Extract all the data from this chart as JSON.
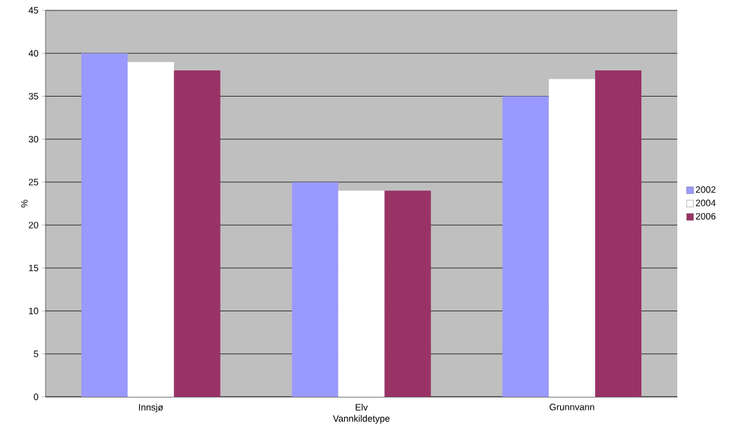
{
  "chart_data": {
    "type": "bar",
    "xlabel": "Vannkildetype",
    "ylabel": "%",
    "categories": [
      "Innsjø",
      "Elv",
      "Grunnvann"
    ],
    "series": [
      {
        "name": "2002",
        "color": "#9999ff",
        "values": [
          40,
          25,
          35
        ]
      },
      {
        "name": "2004",
        "color": "#ffffff",
        "values": [
          39,
          24,
          37
        ]
      },
      {
        "name": "2006",
        "color": "#993366",
        "values": [
          38,
          24,
          38
        ]
      }
    ],
    "ylim": [
      0,
      45
    ],
    "yticks": [
      0,
      5,
      10,
      15,
      20,
      25,
      30,
      35,
      40,
      45
    ],
    "grid": "y",
    "legend": "right"
  }
}
